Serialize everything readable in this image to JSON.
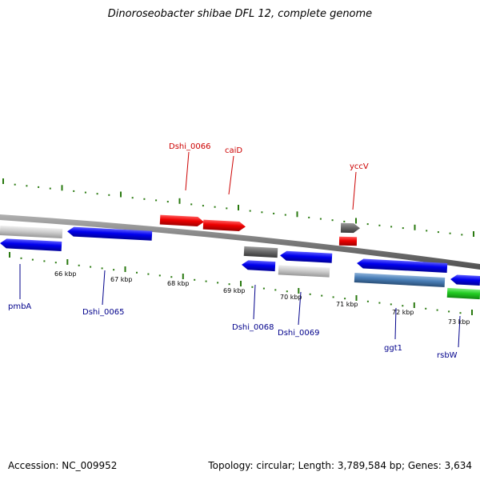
{
  "title": "Dinoroseobacter shibae DFL 12, complete genome",
  "footer": {
    "accession": "Accession: NC_009952",
    "summary": "Topology: circular; Length: 3,789,584 bp; Genes: 3,634"
  },
  "colors": {
    "backbone": "#8c8c8c",
    "tick": "#2a7a10",
    "label_top": "#cc0000",
    "label_bottom": "#00008b"
  },
  "tick_labels": [
    "66 kbp",
    "67 kbp",
    "68 kbp",
    "69 kbp",
    "70 kbp",
    "71 kbp",
    "72 kbp",
    "73 kbp"
  ],
  "labels": {
    "top": [
      "Dshi_0066",
      "caiD",
      "yccV"
    ],
    "bottom": [
      "pmbA",
      "Dshi_0065",
      "Dshi_0068",
      "Dshi_0069",
      "ggt1",
      "rsbW"
    ]
  },
  "features": [
    {
      "type": "gene",
      "strand": "+",
      "color": "red"
    },
    {
      "type": "cds",
      "strand": "+",
      "color": "red"
    },
    {
      "type": "gene",
      "strand": "+",
      "color": "red"
    },
    {
      "type": "cds",
      "strand": "+",
      "color": "red"
    },
    {
      "type": "gene",
      "strand": "+",
      "color": "gray"
    },
    {
      "type": "cds",
      "strand": "+",
      "color": "red"
    },
    {
      "type": "gene",
      "strand": "-",
      "color": "blue"
    },
    {
      "type": "cds",
      "strand": "-",
      "color": "light-gray"
    },
    {
      "type": "gene",
      "strand": "-",
      "color": "blue"
    },
    {
      "type": "gene",
      "strand": "-",
      "color": "blue"
    },
    {
      "type": "cds",
      "strand": "-",
      "color": "gray"
    },
    {
      "type": "gene",
      "strand": "-",
      "color": "blue"
    },
    {
      "type": "cds",
      "strand": "-",
      "color": "light-gray"
    },
    {
      "type": "gene",
      "strand": "-",
      "color": "blue"
    },
    {
      "type": "cds",
      "strand": "-",
      "color": "steel-blue"
    },
    {
      "type": "gene",
      "strand": "-",
      "color": "blue"
    },
    {
      "type": "cds",
      "strand": "-",
      "color": "green"
    }
  ]
}
